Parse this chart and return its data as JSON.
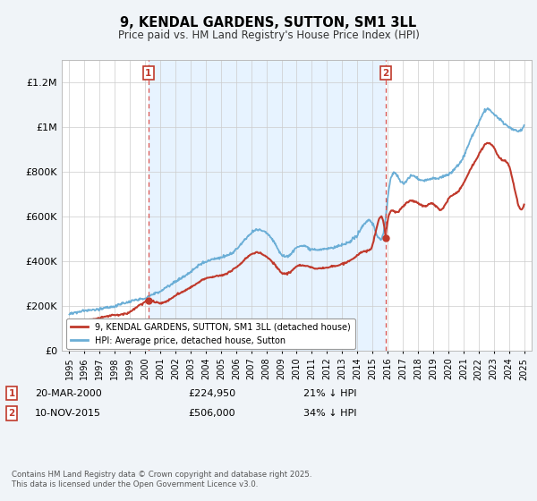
{
  "title": "9, KENDAL GARDENS, SUTTON, SM1 3LL",
  "subtitle": "Price paid vs. HM Land Registry's House Price Index (HPI)",
  "ylim": [
    0,
    1300000
  ],
  "yticks": [
    0,
    200000,
    400000,
    600000,
    800000,
    1000000,
    1200000
  ],
  "ytick_labels": [
    "£0",
    "£200K",
    "£400K",
    "£600K",
    "£800K",
    "£1M",
    "£1.2M"
  ],
  "background_color": "#f0f4f8",
  "plot_bg_color": "#ffffff",
  "shaded_bg_color": "#ddeeff",
  "hpi_color": "#6baed6",
  "price_color": "#c0392b",
  "vline_color": "#d9534f",
  "marker1_year": 2000.22,
  "marker1_price": 224950,
  "marker2_year": 2015.86,
  "marker2_price": 506000,
  "legend_label_price": "9, KENDAL GARDENS, SUTTON, SM1 3LL (detached house)",
  "legend_label_hpi": "HPI: Average price, detached house, Sutton",
  "footnote": "Contains HM Land Registry data © Crown copyright and database right 2025.\nThis data is licensed under the Open Government Licence v3.0.",
  "xmin": 1994.5,
  "xmax": 2025.5
}
